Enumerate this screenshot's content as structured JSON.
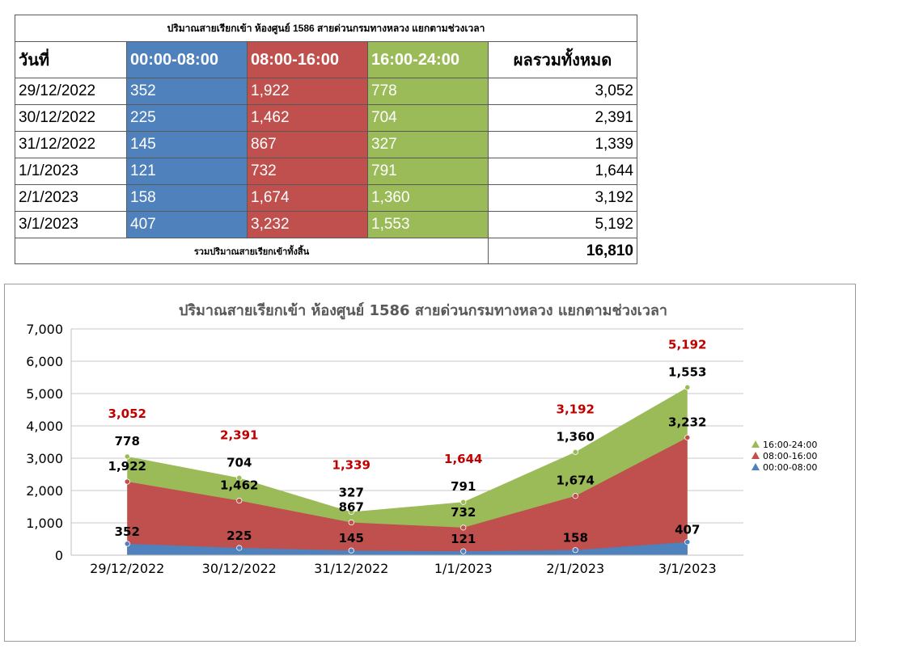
{
  "table": {
    "title": "ปริมาณสายเรียกเข้า ห้องศูนย์ 1586 สายด่วนกรมทางหลวง แยกตามช่วงเวลา",
    "headers": [
      "วันที่",
      "00:00-08:00",
      "08:00-16:00",
      "16:00-24:00",
      "ผลรวมทั้งหมด"
    ],
    "rows": [
      [
        "29/12/2022",
        "352",
        "1,922",
        "778",
        "3,052"
      ],
      [
        "30/12/2022",
        "225",
        "1,462",
        "704",
        "2,391"
      ],
      [
        "31/12/2022",
        "145",
        "867",
        "327",
        "1,339"
      ],
      [
        "1/1/2023",
        "121",
        "732",
        "791",
        "1,644"
      ],
      [
        "2/1/2023",
        "158",
        "1,674",
        "1,360",
        "3,192"
      ],
      [
        "3/1/2023",
        "407",
        "3,232",
        "1,553",
        "5,192"
      ]
    ],
    "total_label": "รวมปริมาณสายเรียกเข้าทั้งสิ้น",
    "total_value": "16,810"
  },
  "colors": {
    "night": "#4f81bd",
    "day": "#c0504d",
    "evening": "#9bbb59",
    "total_label": "#c00000"
  },
  "chart_data": {
    "type": "area",
    "stacked": true,
    "title": "ปริมาณสายเรียกเข้า ห้องศูนย์ 1586 สายด่วนกรมทางหลวง แยกตามช่วงเวลา",
    "categories": [
      "29/12/2022",
      "30/12/2022",
      "31/12/2022",
      "1/1/2023",
      "2/1/2023",
      "3/1/2023"
    ],
    "series": [
      {
        "name": "00:00-08:00",
        "values": [
          352,
          225,
          145,
          121,
          158,
          407
        ],
        "color": "#4f81bd"
      },
      {
        "name": "08:00-16:00",
        "values": [
          1922,
          1462,
          867,
          732,
          1674,
          3232
        ],
        "color": "#c0504d"
      },
      {
        "name": "16:00-24:00",
        "values": [
          778,
          704,
          327,
          791,
          1360,
          1553
        ],
        "color": "#9bbb59"
      }
    ],
    "totals": [
      3052,
      2391,
      1339,
      1644,
      3192,
      5192
    ],
    "ylim": [
      0,
      7000
    ],
    "yticks": [
      0,
      1000,
      2000,
      3000,
      4000,
      5000,
      6000,
      7000
    ],
    "grid": true,
    "legend": "right"
  }
}
